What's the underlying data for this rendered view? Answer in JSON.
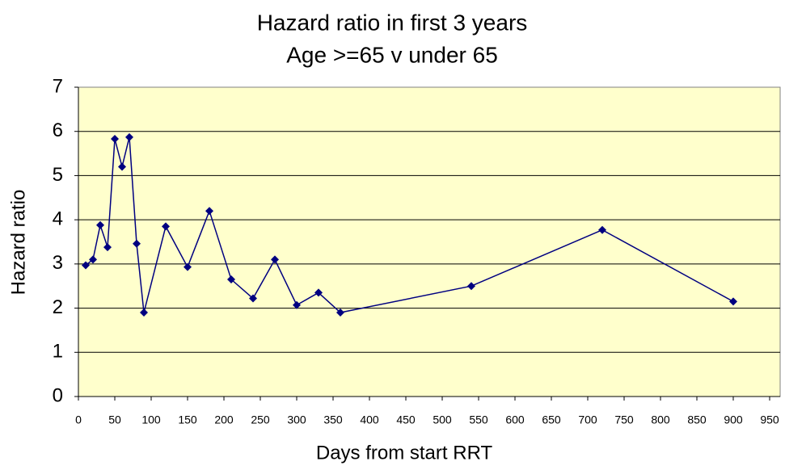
{
  "chart_data": {
    "type": "line",
    "title": "Hazard ratio in first 3 years",
    "subtitle": "Age >=65 v under 65",
    "x_label": "Days from start RRT",
    "y_label": "Hazard ratio",
    "x": [
      10,
      20,
      30,
      40,
      50,
      60,
      70,
      80,
      90,
      120,
      150,
      180,
      210,
      240,
      270,
      300,
      330,
      360,
      540,
      720,
      900
    ],
    "series": [
      {
        "name": "Hazard ratio",
        "color": "#000080",
        "values": [
          2.97,
          3.1,
          3.88,
          3.38,
          5.83,
          5.2,
          5.87,
          3.46,
          1.9,
          3.85,
          2.93,
          4.2,
          2.65,
          2.22,
          3.1,
          2.07,
          2.35,
          1.9,
          2.5,
          3.77,
          2.15
        ]
      }
    ],
    "xlim": [
      0,
      950
    ],
    "xticks": [
      0,
      50,
      100,
      150,
      200,
      250,
      300,
      350,
      400,
      450,
      500,
      550,
      600,
      650,
      700,
      750,
      800,
      850,
      900,
      950
    ],
    "ylim": [
      0,
      7
    ],
    "yticks": [
      0,
      1,
      2,
      3,
      4,
      5,
      6,
      7
    ],
    "grid": true,
    "plot_background": "#ffffcc"
  }
}
